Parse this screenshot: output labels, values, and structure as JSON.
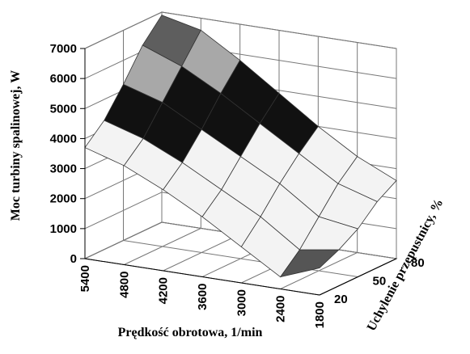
{
  "chart_data": {
    "type": "surface",
    "zlabel": "Moc turbiny spalinowej, W",
    "xlabel": "Prędkość obrotowa, 1/min",
    "ylabel": "Uchylenie przepustnicy, %",
    "categories": [
      "5400",
      "4800",
      "4200",
      "3600",
      "3000",
      "2400",
      "1800"
    ],
    "depth": [
      20,
      35,
      50,
      65,
      80
    ],
    "depth_lim": [
      20,
      80
    ],
    "depth_ticks": [
      20,
      50,
      80
    ],
    "zlim": [
      0,
      7000
    ],
    "zticks": [
      0,
      1000,
      2000,
      3000,
      4000,
      5000,
      6000,
      7000
    ],
    "z": [
      [
        3700,
        3300,
        2700,
        2000,
        1200,
        400,
        900
      ],
      [
        4300,
        3900,
        3300,
        2600,
        1900,
        1000,
        1200
      ],
      [
        5200,
        4800,
        4100,
        3400,
        2700,
        1800,
        1600
      ],
      [
        6200,
        5700,
        5000,
        4200,
        3400,
        2600,
        2200
      ],
      [
        6900,
        6600,
        5800,
        4900,
        4000,
        3200,
        2600
      ]
    ],
    "band_colors": [
      "#555555",
      "#f3f3f3",
      "#f3f3f3",
      "#f3f3f3",
      "#111111",
      "#a8a8a8",
      "#5e5e5e"
    ],
    "grid": true
  }
}
